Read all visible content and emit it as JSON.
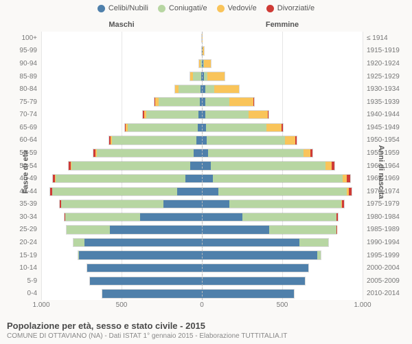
{
  "chart": {
    "type": "population-pyramid",
    "title": "Popolazione per età, sesso e stato civile - 2015",
    "subtitle": "COMUNE DI OTTAVIANO (NA) - Dati ISTAT 1° gennaio 2015 - Elaborazione TUTTITALIA.IT",
    "gender_left": "Maschi",
    "gender_right": "Femmine",
    "y_left_title": "Fasce di età",
    "y_right_title": "Anni di nascita",
    "legend": [
      {
        "label": "Celibi/Nubili",
        "color": "#4f80ab"
      },
      {
        "label": "Coniugati/e",
        "color": "#b7d6a2"
      },
      {
        "label": "Vedovi/e",
        "color": "#f9c45a"
      },
      {
        "label": "Divorziati/e",
        "color": "#cf3b36"
      }
    ],
    "colors": {
      "celibi": "#4f80ab",
      "coniugati": "#b7d6a2",
      "vedovi": "#f9c45a",
      "divorziati": "#cf3b36",
      "grid": "#e6e6e6",
      "bg": "#ffffff",
      "page_bg": "#faf9f7"
    },
    "x_max": 1000,
    "x_ticks": [
      1000,
      500,
      0,
      500,
      1000
    ],
    "x_tick_labels": [
      "1.000",
      "500",
      "0",
      "500",
      "1.000"
    ],
    "age_labels": [
      "100+",
      "95-99",
      "90-94",
      "85-89",
      "80-84",
      "75-79",
      "70-74",
      "65-69",
      "60-64",
      "55-59",
      "50-54",
      "45-49",
      "40-44",
      "35-39",
      "30-34",
      "25-29",
      "20-24",
      "15-19",
      "10-14",
      "5-9",
      "0-4"
    ],
    "birth_labels": [
      "≤ 1914",
      "1915-1919",
      "1920-1924",
      "1925-1929",
      "1930-1934",
      "1935-1939",
      "1940-1944",
      "1945-1949",
      "1950-1954",
      "1955-1959",
      "1960-1964",
      "1965-1969",
      "1970-1974",
      "1975-1979",
      "1980-1984",
      "1985-1989",
      "1990-1994",
      "1995-1999",
      "2000-2004",
      "2005-2009",
      "2010-2014"
    ],
    "rows": [
      {
        "m": {
          "c": 0,
          "co": 0,
          "v": 2,
          "d": 0
        },
        "f": {
          "c": 2,
          "co": 0,
          "v": 3,
          "d": 0
        }
      },
      {
        "m": {
          "c": 0,
          "co": 3,
          "v": 3,
          "d": 0
        },
        "f": {
          "c": 3,
          "co": 0,
          "v": 15,
          "d": 0
        }
      },
      {
        "m": {
          "c": 2,
          "co": 10,
          "v": 8,
          "d": 0
        },
        "f": {
          "c": 10,
          "co": 5,
          "v": 45,
          "d": 0
        }
      },
      {
        "m": {
          "c": 5,
          "co": 55,
          "v": 15,
          "d": 0
        },
        "f": {
          "c": 15,
          "co": 20,
          "v": 110,
          "d": 0
        }
      },
      {
        "m": {
          "c": 10,
          "co": 140,
          "v": 20,
          "d": 0
        },
        "f": {
          "c": 20,
          "co": 60,
          "v": 155,
          "d": 0
        }
      },
      {
        "m": {
          "c": 15,
          "co": 260,
          "v": 20,
          "d": 3
        },
        "f": {
          "c": 20,
          "co": 155,
          "v": 150,
          "d": 3
        }
      },
      {
        "m": {
          "c": 20,
          "co": 330,
          "v": 15,
          "d": 5
        },
        "f": {
          "c": 20,
          "co": 275,
          "v": 120,
          "d": 5
        }
      },
      {
        "m": {
          "c": 25,
          "co": 440,
          "v": 12,
          "d": 8
        },
        "f": {
          "c": 25,
          "co": 380,
          "v": 95,
          "d": 8
        }
      },
      {
        "m": {
          "c": 35,
          "co": 530,
          "v": 8,
          "d": 10
        },
        "f": {
          "c": 30,
          "co": 490,
          "v": 65,
          "d": 10
        }
      },
      {
        "m": {
          "c": 50,
          "co": 610,
          "v": 6,
          "d": 12
        },
        "f": {
          "c": 40,
          "co": 595,
          "v": 45,
          "d": 12
        }
      },
      {
        "m": {
          "c": 75,
          "co": 740,
          "v": 5,
          "d": 15
        },
        "f": {
          "c": 55,
          "co": 720,
          "v": 35,
          "d": 18
        }
      },
      {
        "m": {
          "c": 105,
          "co": 810,
          "v": 3,
          "d": 15
        },
        "f": {
          "c": 70,
          "co": 810,
          "v": 25,
          "d": 22
        }
      },
      {
        "m": {
          "c": 155,
          "co": 780,
          "v": 2,
          "d": 12
        },
        "f": {
          "c": 105,
          "co": 800,
          "v": 15,
          "d": 18
        }
      },
      {
        "m": {
          "c": 240,
          "co": 640,
          "v": 0,
          "d": 8
        },
        "f": {
          "c": 170,
          "co": 700,
          "v": 8,
          "d": 12
        }
      },
      {
        "m": {
          "c": 385,
          "co": 470,
          "v": 0,
          "d": 5
        },
        "f": {
          "c": 255,
          "co": 585,
          "v": 3,
          "d": 8
        }
      },
      {
        "m": {
          "c": 575,
          "co": 270,
          "v": 0,
          "d": 2
        },
        "f": {
          "c": 420,
          "co": 420,
          "v": 0,
          "d": 3
        }
      },
      {
        "m": {
          "c": 735,
          "co": 70,
          "v": 0,
          "d": 0
        },
        "f": {
          "c": 610,
          "co": 180,
          "v": 0,
          "d": 0
        }
      },
      {
        "m": {
          "c": 770,
          "co": 3,
          "v": 0,
          "d": 0
        },
        "f": {
          "c": 720,
          "co": 22,
          "v": 0,
          "d": 0
        }
      },
      {
        "m": {
          "c": 720,
          "co": 0,
          "v": 0,
          "d": 0
        },
        "f": {
          "c": 665,
          "co": 0,
          "v": 0,
          "d": 0
        }
      },
      {
        "m": {
          "c": 700,
          "co": 0,
          "v": 0,
          "d": 0
        },
        "f": {
          "c": 645,
          "co": 0,
          "v": 0,
          "d": 0
        }
      },
      {
        "m": {
          "c": 625,
          "co": 0,
          "v": 0,
          "d": 0
        },
        "f": {
          "c": 575,
          "co": 0,
          "v": 0,
          "d": 0
        }
      }
    ]
  }
}
